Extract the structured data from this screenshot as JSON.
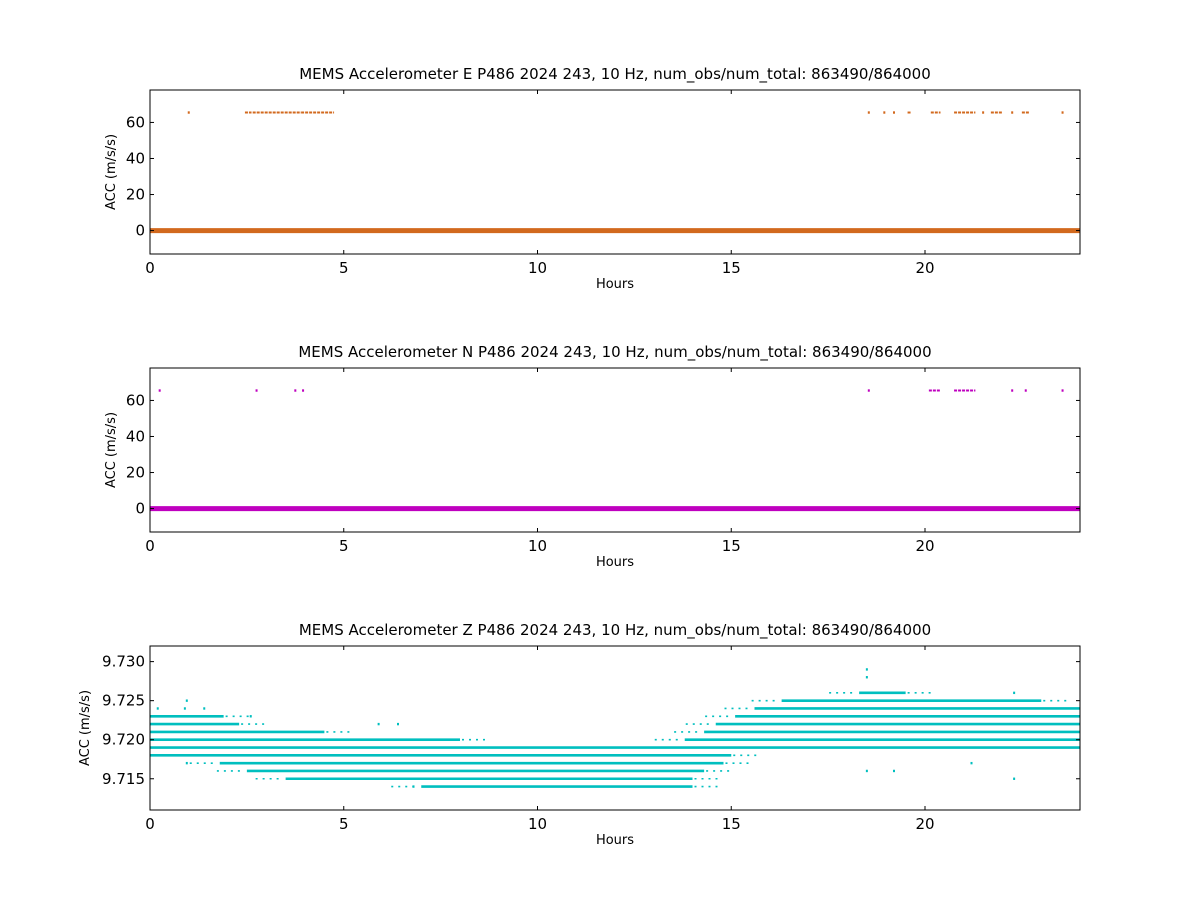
{
  "chart_data": [
    {
      "type": "scatter",
      "title": "MEMS Accelerometer E P486 2024 243, 10 Hz, num_obs/num_total: 863490/864000",
      "xlabel": "Hours",
      "ylabel": "ACC (m/s/s)",
      "xlim": [
        0,
        24
      ],
      "ylim": [
        -13,
        78
      ],
      "xticks": [
        "0",
        "5",
        "10",
        "15",
        "20"
      ],
      "yticks": [
        "0",
        "20",
        "40",
        "60"
      ],
      "grid": false,
      "color": "#d2691e",
      "series": [
        {
          "baseline": {
            "value": 0,
            "x_range": [
              0,
              24
            ]
          },
          "outliers": [
            {
              "x": 1.0,
              "y": 65.5
            },
            {
              "x_range": [
                2.45,
                2.62
              ],
              "y": 65.5
            },
            {
              "x_range": [
                2.65,
                3.9
              ],
              "y": 65.5
            },
            {
              "x_range": [
                3.9,
                4.75
              ],
              "y": 65.5
            },
            {
              "x": 18.55,
              "y": 65.5
            },
            {
              "x": 18.95,
              "y": 65.5
            },
            {
              "x": 19.2,
              "y": 65.5
            },
            {
              "x_range": [
                19.55,
                19.65
              ],
              "y": 65.5
            },
            {
              "x_range": [
                20.15,
                20.4
              ],
              "y": 65.5
            },
            {
              "x_range": [
                20.75,
                21.3
              ],
              "y": 65.5
            },
            {
              "x": 21.5,
              "y": 65.5
            },
            {
              "x_range": [
                21.7,
                22.0
              ],
              "y": 65.5
            },
            {
              "x": 22.25,
              "y": 65.5
            },
            {
              "x_range": [
                22.5,
                22.7
              ],
              "y": 65.5
            },
            {
              "x": 23.55,
              "y": 65.5
            }
          ]
        }
      ]
    },
    {
      "type": "scatter",
      "title": "MEMS Accelerometer N P486 2024 243, 10 Hz, num_obs/num_total: 863490/864000",
      "xlabel": "Hours",
      "ylabel": "ACC (m/s/s)",
      "xlim": [
        0,
        24
      ],
      "ylim": [
        -13,
        78
      ],
      "xticks": [
        "0",
        "5",
        "10",
        "15",
        "20"
      ],
      "yticks": [
        "0",
        "20",
        "40",
        "60"
      ],
      "grid": false,
      "color": "#bf00bf",
      "series": [
        {
          "baseline": {
            "value": 0,
            "x_range": [
              0,
              24
            ]
          },
          "outliers": [
            {
              "x": 0.25,
              "y": 65.5
            },
            {
              "x": 2.75,
              "y": 65.5
            },
            {
              "x": 3.75,
              "y": 65.5
            },
            {
              "x": 3.95,
              "y": 65.5
            },
            {
              "x": 18.55,
              "y": 65.5
            },
            {
              "x_range": [
                20.1,
                20.4
              ],
              "y": 65.5
            },
            {
              "x_range": [
                20.75,
                21.3
              ],
              "y": 65.5
            },
            {
              "x": 22.25,
              "y": 65.5
            },
            {
              "x": 22.6,
              "y": 65.5
            },
            {
              "x": 23.55,
              "y": 65.5
            }
          ]
        }
      ]
    },
    {
      "type": "scatter",
      "title": "MEMS Accelerometer Z P486 2024 243, 10 Hz, num_obs/num_total: 863490/864000",
      "xlabel": "Hours",
      "ylabel": "ACC (m/s/s)",
      "xlim": [
        0,
        24
      ],
      "ylim": [
        9.711,
        9.732
      ],
      "xticks": [
        "0",
        "5",
        "10",
        "15",
        "20"
      ],
      "yticks": [
        "9.715",
        "9.720",
        "9.725",
        "9.730"
      ],
      "grid": false,
      "color": "#00bfbf",
      "series": [
        {
          "bands": [
            {
              "y": 9.726,
              "x_range": [
                18.3,
                19.5
              ]
            },
            {
              "y": 9.725,
              "x_range": [
                16.3,
                23.0
              ]
            },
            {
              "y": 9.724,
              "x_range": [
                15.6,
                24.0
              ]
            },
            {
              "y": 9.723,
              "x_range": [
                0.0,
                1.9
              ]
            },
            {
              "y": 9.723,
              "x_range": [
                15.1,
                24.0
              ]
            },
            {
              "y": 9.722,
              "x_range": [
                0.0,
                2.3
              ]
            },
            {
              "y": 9.722,
              "x_range": [
                14.6,
                24.0
              ]
            },
            {
              "y": 9.721,
              "x_range": [
                0.0,
                4.5
              ]
            },
            {
              "y": 9.721,
              "x_range": [
                14.3,
                24.0
              ]
            },
            {
              "y": 9.72,
              "x_range": [
                0.0,
                8.0
              ]
            },
            {
              "y": 9.72,
              "x_range": [
                13.8,
                24.0
              ]
            },
            {
              "y": 9.719,
              "x_range": [
                0.0,
                24.0
              ]
            },
            {
              "y": 9.718,
              "x_range": [
                0.0,
                15.0
              ]
            },
            {
              "y": 9.717,
              "x_range": [
                1.8,
                14.8
              ]
            },
            {
              "y": 9.716,
              "x_range": [
                2.5,
                14.3
              ]
            },
            {
              "y": 9.715,
              "x_range": [
                3.5,
                14.0
              ]
            },
            {
              "y": 9.714,
              "x_range": [
                7.0,
                14.0
              ]
            }
          ],
          "outliers": [
            {
              "x": 0.2,
              "y": 9.724
            },
            {
              "x": 0.9,
              "y": 9.724
            },
            {
              "x": 0.95,
              "y": 9.725
            },
            {
              "x": 1.4,
              "y": 9.724
            },
            {
              "x": 0.95,
              "y": 9.717
            },
            {
              "x": 2.6,
              "y": 9.723
            },
            {
              "x": 5.9,
              "y": 9.722
            },
            {
              "x": 6.4,
              "y": 9.722
            },
            {
              "x": 6.8,
              "y": 9.714
            },
            {
              "x": 18.5,
              "y": 9.729
            },
            {
              "x": 18.5,
              "y": 9.728
            },
            {
              "x": 18.5,
              "y": 9.716
            },
            {
              "x": 19.2,
              "y": 9.716
            },
            {
              "x": 22.3,
              "y": 9.726
            },
            {
              "x": 22.3,
              "y": 9.715
            },
            {
              "x": 21.2,
              "y": 9.717
            }
          ]
        }
      ]
    }
  ]
}
